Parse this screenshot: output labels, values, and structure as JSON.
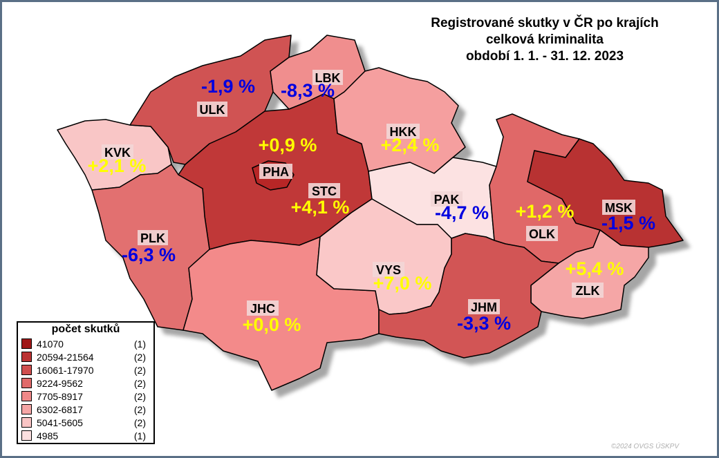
{
  "title": {
    "line1": "Registrované skutky v ČR po krajích",
    "line2": "celková kriminalita",
    "line3": "období 1. 1. - 31. 12. 2023"
  },
  "regions": [
    {
      "code": "ULK",
      "change": "-1,9 %",
      "sign": "neg",
      "class": 2,
      "fill": "#d05252"
    },
    {
      "code": "LBK",
      "change": "-8,3 %",
      "sign": "neg",
      "class": 5,
      "fill": "#f08e8e"
    },
    {
      "code": "KVK",
      "change": "+2,1 %",
      "sign": "pos",
      "class": 6,
      "fill": "#f9c6c6"
    },
    {
      "code": "PHA",
      "change": "+0,9 %",
      "sign": "pos",
      "class": 0,
      "fill": "#b72828"
    },
    {
      "code": "STC",
      "change": "+4,1 %",
      "sign": "pos",
      "class": 1,
      "fill": "#c03838"
    },
    {
      "code": "HKK",
      "change": "+2,4 %",
      "sign": "pos",
      "class": 5,
      "fill": "#f59f9f"
    },
    {
      "code": "PAK",
      "change": "-4,7 %",
      "sign": "neg",
      "class": 7,
      "fill": "#fce2e2"
    },
    {
      "code": "OLK",
      "change": "+1,2 %",
      "sign": "pos",
      "class": 3,
      "fill": "#e06868"
    },
    {
      "code": "MSK",
      "change": "-1,5 %",
      "sign": "neg",
      "class": 1,
      "fill": "#b83030"
    },
    {
      "code": "ZLK",
      "change": "+5,4 %",
      "sign": "pos",
      "class": 4,
      "fill": "#f5a6a6"
    },
    {
      "code": "PLK",
      "change": "-6,3 %",
      "sign": "neg",
      "class": 3,
      "fill": "#e27070"
    },
    {
      "code": "JHC",
      "change": "+0,0 %",
      "sign": "pos",
      "class": 4,
      "fill": "#f38a8a"
    },
    {
      "code": "VYS",
      "change": "+7,0 %",
      "sign": "pos",
      "class": 6,
      "fill": "#fac8c8"
    },
    {
      "code": "JHM",
      "change": "-3,3 %",
      "sign": "neg",
      "class": 2,
      "fill": "#d25555"
    }
  ],
  "legend": {
    "title": "počet skutků",
    "items": [
      {
        "range": "41070",
        "count": "(1)",
        "color": "#a01818"
      },
      {
        "range": "20594-21564",
        "count": "(2)",
        "color": "#bb3232"
      },
      {
        "range": "16061-17970",
        "count": "(2)",
        "color": "#d04e4e"
      },
      {
        "range": "9224-9562",
        "count": "(2)",
        "color": "#e06a6a"
      },
      {
        "range": "7705-8917",
        "count": "(2)",
        "color": "#f08888"
      },
      {
        "range": "6302-6817",
        "count": "(2)",
        "color": "#f5a5a5"
      },
      {
        "range": "5041-5605",
        "count": "(2)",
        "color": "#f9c4c4"
      },
      {
        "range": "4985",
        "count": "(1)",
        "color": "#fce0e0"
      }
    ]
  },
  "copyright": "©2024 OVGS ÚSKPV"
}
